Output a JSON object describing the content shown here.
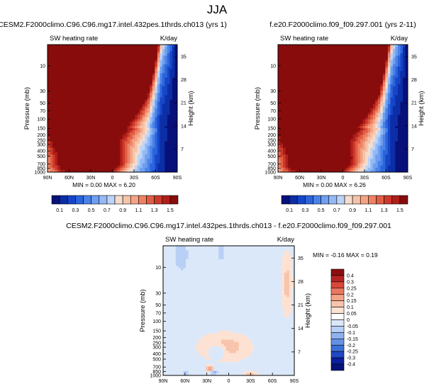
{
  "season": "JJA",
  "chart_data": [
    {
      "type": "heatmap",
      "title": "CESM2.F2000climo.C96.C96.mg17.intel.432pes.1thrds.ch013 (yrs 1)",
      "subtitle_left": "SW heating rate",
      "subtitle_right": "K/day",
      "ylabel": "Pressure (mb)",
      "ylabel_right": "Height (km)",
      "x_ticks": [
        "90N",
        "60N",
        "30N",
        "0",
        "30S",
        "60S",
        "90S"
      ],
      "y_ticks": [
        "10",
        "30",
        "50",
        "70",
        "100",
        "150",
        "200",
        "250",
        "300",
        "400",
        "500",
        "700",
        "850",
        "1000"
      ],
      "y_ticks_right": [
        "35",
        "28",
        "21",
        "14",
        "7"
      ],
      "stats": {
        "min_label": "MIN =",
        "min": "0.00",
        "max_label": "MAX =",
        "max": "6.20"
      },
      "colorbar": {
        "orientation": "horizontal",
        "labels": [
          "0.1",
          "0.3",
          "0.5",
          "0.7",
          "0.9",
          "1.1",
          "1.3",
          "1.5"
        ]
      }
    },
    {
      "type": "heatmap",
      "title": "f.e20.F2000climo.f09_f09.297.001 (yrs 2-11)",
      "subtitle_left": "SW heating rate",
      "subtitle_right": "K/day",
      "ylabel": "Pressure (mb)",
      "ylabel_right": "Height (km)",
      "x_ticks": [
        "90N",
        "60N",
        "30N",
        "0",
        "30S",
        "60S",
        "90S"
      ],
      "y_ticks": [
        "10",
        "30",
        "50",
        "70",
        "100",
        "150",
        "200",
        "250",
        "300",
        "400",
        "500",
        "700",
        "850",
        "1000"
      ],
      "y_ticks_right": [
        "35",
        "28",
        "21",
        "14",
        "7"
      ],
      "stats": {
        "min_label": "MIN =",
        "min": "0.00",
        "max_label": "MAX =",
        "max": "6.26"
      },
      "colorbar": {
        "orientation": "horizontal",
        "labels": [
          "0.1",
          "0.3",
          "0.5",
          "0.7",
          "0.9",
          "1.1",
          "1.3",
          "1.5"
        ]
      }
    },
    {
      "type": "heatmap",
      "title": "CESM2.F2000climo.C96.C96.mg17.intel.432pes.1thrds.ch013 - f.e20.F2000climo.f09_f09.297.001",
      "subtitle_left": "SW heating rate",
      "subtitle_right": "K/day",
      "ylabel": "Pressure (mb)",
      "ylabel_right": "Height (km)",
      "x_ticks": [
        "90N",
        "60N",
        "30N",
        "0",
        "30S",
        "60S",
        "90S"
      ],
      "y_ticks": [
        "10",
        "30",
        "50",
        "70",
        "100",
        "150",
        "200",
        "250",
        "300",
        "400",
        "500",
        "700",
        "850",
        "1000"
      ],
      "y_ticks_right": [
        "35",
        "28",
        "21",
        "14",
        "7"
      ],
      "stats": {
        "min_label": "MIN =",
        "min": "-0.16",
        "max_label": "MAX =",
        "max": "0.19"
      },
      "colorbar": {
        "orientation": "vertical",
        "labels": [
          "0.4",
          "0.3",
          "0.25",
          "0.2",
          "0.15",
          "0.1",
          "0.05",
          "0",
          "-0.05",
          "-0.1",
          "-0.15",
          "-0.2",
          "-0.25",
          "-0.3",
          "-0.4"
        ]
      }
    }
  ],
  "colors": {
    "abs_scale": [
      "#08107a",
      "#0c2ea6",
      "#1646c8",
      "#2c64dc",
      "#4a82e8",
      "#6e9ef0",
      "#94baf5",
      "#bcd4f8",
      "#f5dccc",
      "#f7c3a8",
      "#f4a486",
      "#ee8264",
      "#e15e44",
      "#cc3a2a",
      "#b01e1a",
      "#880c0c"
    ],
    "diff_scale": [
      "#8b0f0f",
      "#b52424",
      "#d8483a",
      "#ea7860",
      "#f3a487",
      "#f8c4ad",
      "#fde2d3",
      "#ffffff",
      "#dbe8fa",
      "#b8d0f5",
      "#8fb2ee",
      "#6592e4",
      "#3d6fd8",
      "#1f48c2",
      "#0a1f9e",
      "#06127a"
    ],
    "diff_pos_bg": "#fde2d3",
    "diff_neg_bg": "#dbe8fa"
  }
}
